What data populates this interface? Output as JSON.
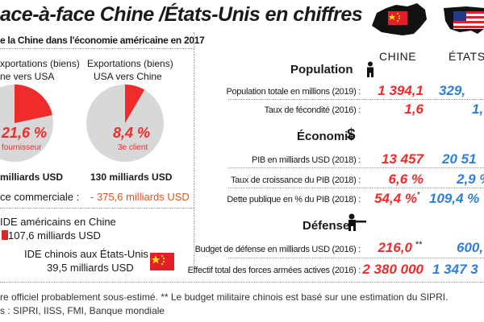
{
  "title": "ace-à-face Chine /États-Unis en chiffres",
  "left_panel": {
    "subtitle": "e la Chine dans l'économie américaine en 2017",
    "pie_china_to_us": {
      "label_line1": "xportations (biens)",
      "label_line2": "ne vers USA",
      "value_text": "21,6 %",
      "note": "fournisseur",
      "amount": "milliards USD",
      "share": 21.6,
      "color_main": "#ef2b2b"
    },
    "pie_us_to_china": {
      "label_line1": "Exportations (biens)",
      "label_line2": "USA vers Chine",
      "value_text": "8,4 %",
      "note": "3e client",
      "amount": "130 milliards USD",
      "share": 8.4,
      "color_main": "#ef2b2b"
    },
    "trade_balance_label": "ce commerciale :",
    "trade_balance_value": "- 375,6 milliards USD",
    "fdi_us_label": "IDE américains en Chine",
    "fdi_us_value": "107,6 milliards USD",
    "fdi_cn_label": "IDE chinois aux États-Unis",
    "fdi_cn_value": "39,5 milliards USD"
  },
  "chart_data": {
    "type": "table",
    "columns": [
      "CHINE",
      "ÉTATS-"
    ],
    "sections": [
      {
        "name": "Population",
        "icon": "person-icon",
        "rows": [
          {
            "label": "Population totale en millions (2019) :",
            "china": "1 394,1",
            "us": "329,"
          },
          {
            "label": "Taux de fécondité (2016) :",
            "china": "1,6",
            "us": "1,"
          }
        ]
      },
      {
        "name": "Économie",
        "icon": "dollar-icon",
        "rows": [
          {
            "label": "PIB en milliards USD (2018) :",
            "china": "13 457",
            "us": "20 51"
          },
          {
            "label": "Taux de croissance du PIB (2018) :",
            "china": "6,6 %",
            "us": "2,9 %"
          },
          {
            "label": "Dette publique en % du PIB (2018) :",
            "china": "54,4 %",
            "china_mark": "*",
            "us": "109,4 %"
          }
        ]
      },
      {
        "name": "Défense",
        "icon": "soldier-icon",
        "rows": [
          {
            "label": "Budget de défense en milliards USD (2016) :",
            "china": "216,0",
            "china_mark": "**",
            "us": "600,"
          },
          {
            "label": "Effectif total des forces armées actives (2016) :",
            "china": "2 380 000",
            "us": "1 347 3"
          }
        ]
      }
    ],
    "colors": {
      "china": "#ef2b2b",
      "us": "#2f7fd8"
    }
  },
  "footer": {
    "line1": "re officiel probablement sous-estimé.  ** Le budget militaire chinois est basé sur une estimation du SIPRI.",
    "line2": "s : SIPRI, IISS, FMI, Banque mondiale"
  }
}
